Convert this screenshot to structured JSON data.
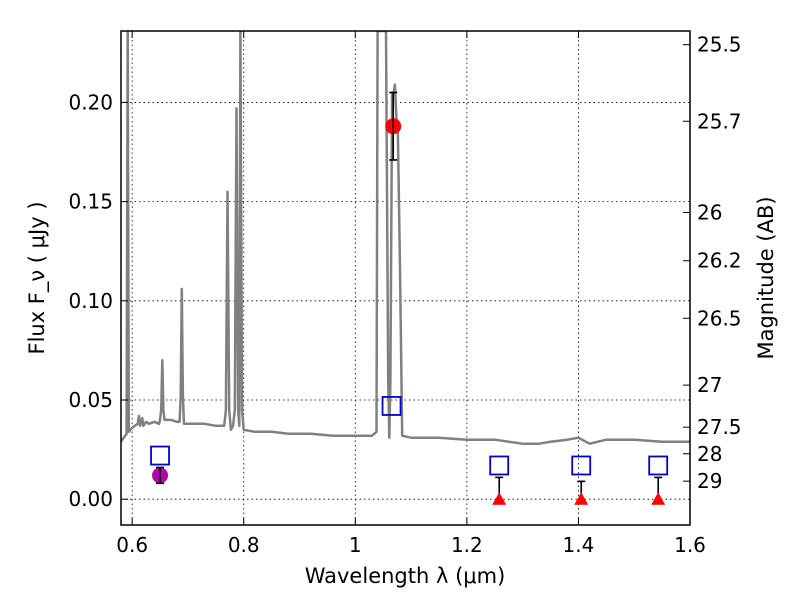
{
  "chart_data": {
    "type": "scatter",
    "xlabel": "Wavelength  λ (μm)",
    "ylabel_left": "Flux  F_ν  ( μJy )",
    "ylabel_right": "Magnitude (AB)",
    "xlim": [
      0.58,
      1.6
    ],
    "ylim": [
      -0.013,
      0.236
    ],
    "x_ticks": [
      0.6,
      0.8,
      1.0,
      1.2,
      1.4,
      1.6
    ],
    "x_tick_labels": [
      "0.6",
      "0.8",
      "1",
      "1.2",
      "1.4",
      "1.6"
    ],
    "y_ticks": [
      0.0,
      0.05,
      0.1,
      0.15,
      0.2
    ],
    "y_tick_labels": [
      "0.00",
      "0.05",
      "0.10",
      "0.15",
      "0.20"
    ],
    "right_ticks": [
      {
        "label": "25.5",
        "flux": 0.2291
      },
      {
        "label": "25.7",
        "flux": 0.1905
      },
      {
        "label": "26",
        "flux": 0.1445
      },
      {
        "label": "26.2",
        "flux": 0.1202
      },
      {
        "label": "26.5",
        "flux": 0.0912
      },
      {
        "label": "27",
        "flux": 0.0575
      },
      {
        "label": "27.5",
        "flux": 0.0363
      },
      {
        "label": "28",
        "flux": 0.0229
      },
      {
        "label": "29",
        "flux": 0.0091
      }
    ],
    "grid": true,
    "spectrum": {
      "color": "#808080",
      "points": [
        [
          0.58,
          0.029
        ],
        [
          0.59,
          0.033
        ],
        [
          0.592,
          0.236
        ],
        [
          0.594,
          0.034
        ],
        [
          0.6,
          0.036
        ],
        [
          0.61,
          0.038
        ],
        [
          0.612,
          0.042
        ],
        [
          0.614,
          0.037
        ],
        [
          0.618,
          0.041
        ],
        [
          0.62,
          0.037
        ],
        [
          0.625,
          0.039
        ],
        [
          0.63,
          0.038
        ],
        [
          0.64,
          0.039
        ],
        [
          0.648,
          0.038
        ],
        [
          0.65,
          0.04
        ],
        [
          0.652,
          0.045
        ],
        [
          0.654,
          0.07
        ],
        [
          0.656,
          0.045
        ],
        [
          0.658,
          0.04
        ],
        [
          0.67,
          0.04
        ],
        [
          0.68,
          0.039
        ],
        [
          0.685,
          0.039
        ],
        [
          0.687,
          0.052
        ],
        [
          0.689,
          0.106
        ],
        [
          0.691,
          0.052
        ],
        [
          0.693,
          0.038
        ],
        [
          0.71,
          0.038
        ],
        [
          0.73,
          0.038
        ],
        [
          0.75,
          0.037
        ],
        [
          0.765,
          0.037
        ],
        [
          0.768,
          0.045
        ],
        [
          0.771,
          0.155
        ],
        [
          0.774,
          0.045
        ],
        [
          0.777,
          0.035
        ],
        [
          0.781,
          0.037
        ],
        [
          0.784,
          0.045
        ],
        [
          0.787,
          0.197
        ],
        [
          0.79,
          0.045
        ],
        [
          0.792,
          0.037
        ],
        [
          0.794,
          0.236
        ],
        [
          0.797,
          0.045
        ],
        [
          0.8,
          0.035
        ],
        [
          0.82,
          0.034
        ],
        [
          0.85,
          0.034
        ],
        [
          0.88,
          0.033
        ],
        [
          0.92,
          0.033
        ],
        [
          0.96,
          0.032
        ],
        [
          1.0,
          0.032
        ],
        [
          1.03,
          0.032
        ],
        [
          1.038,
          0.034
        ],
        [
          1.04,
          0.236
        ],
        [
          1.055,
          0.236
        ],
        [
          1.059,
          0.06
        ],
        [
          1.061,
          0.031
        ],
        [
          1.063,
          0.06
        ],
        [
          1.066,
          0.205
        ],
        [
          1.069,
          0.205
        ],
        [
          1.071,
          0.209
        ],
        [
          1.074,
          0.19
        ],
        [
          1.076,
          0.19
        ],
        [
          1.08,
          0.12
        ],
        [
          1.084,
          0.032
        ],
        [
          1.1,
          0.031
        ],
        [
          1.15,
          0.031
        ],
        [
          1.2,
          0.03
        ],
        [
          1.25,
          0.03
        ],
        [
          1.3,
          0.028
        ],
        [
          1.33,
          0.028
        ],
        [
          1.35,
          0.029
        ],
        [
          1.38,
          0.03
        ],
        [
          1.4,
          0.031
        ],
        [
          1.42,
          0.028
        ],
        [
          1.45,
          0.03
        ],
        [
          1.5,
          0.03
        ],
        [
          1.55,
          0.029
        ],
        [
          1.6,
          0.029
        ]
      ]
    },
    "model_points": {
      "marker": "open-square",
      "color": "#0000cc",
      "points": [
        {
          "x": 0.65,
          "y": 0.022
        },
        {
          "x": 1.065,
          "y": 0.047
        },
        {
          "x": 1.258,
          "y": 0.017
        },
        {
          "x": 1.405,
          "y": 0.017
        },
        {
          "x": 1.543,
          "y": 0.017
        }
      ]
    },
    "detections": [
      {
        "x": 0.65,
        "y": 0.012,
        "err_low": 0.004,
        "err_high": 0.004,
        "color": "#b000b0"
      },
      {
        "x": 1.068,
        "y": 0.188,
        "err_low": 0.017,
        "err_high": 0.017,
        "color": "#ff0000"
      }
    ],
    "upper_limits": {
      "color": "#ff0000",
      "points": [
        {
          "x": 1.258,
          "y": 0.0,
          "limit": 0.011
        },
        {
          "x": 1.405,
          "y": 0.0,
          "limit": 0.009
        },
        {
          "x": 1.543,
          "y": 0.0,
          "limit": 0.011
        }
      ]
    }
  }
}
